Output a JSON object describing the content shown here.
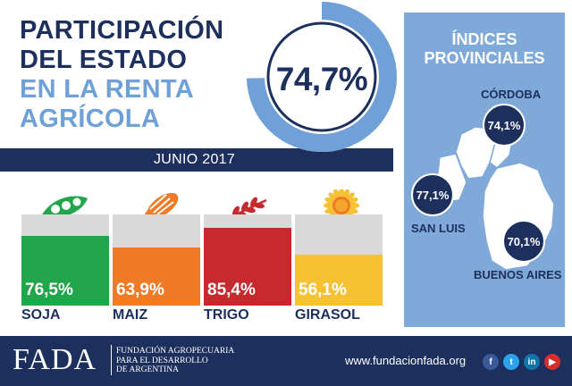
{
  "title": {
    "line1": "PARTICIPACIÓN",
    "line2": "DEL ESTADO",
    "line3": "EN LA RENTA",
    "line4": "AGRÍCOLA"
  },
  "date": "JUNIO 2017",
  "total": {
    "label": "74,7%",
    "fraction": 0.747
  },
  "provinces": {
    "title_line1": "ÍNDICES",
    "title_line2": "PROVINCIALES",
    "items": [
      {
        "name": "CÓRDOBA",
        "value": "74,1%"
      },
      {
        "name": "SAN LUIS",
        "value": "77,1%"
      },
      {
        "name": "BUENOS AIRES",
        "value": "70,1%"
      }
    ]
  },
  "crops": [
    {
      "name": "SOJA",
      "value": "76,5%",
      "fraction": 0.765,
      "color": "#22a64b",
      "icon": "soy-pod-icon"
    },
    {
      "name": "MAIZ",
      "value": "63,9%",
      "fraction": 0.639,
      "color": "#f07a26",
      "icon": "corn-icon"
    },
    {
      "name": "TRIGO",
      "value": "85,4%",
      "fraction": 0.854,
      "color": "#c62a2e",
      "icon": "wheat-icon"
    },
    {
      "name": "GIRASOL",
      "value": "56,1%",
      "fraction": 0.561,
      "color": "#f6c234",
      "icon": "sunflower-icon"
    }
  ],
  "footer": {
    "logo": "FADA",
    "sub_line1": "FUNDACIÓN AGROPECUARIA",
    "sub_line2": "PARA EL DESARROLLO",
    "sub_line3": "DE ARGENTINA",
    "website": "www.fundacionfada.org",
    "social": [
      {
        "icon": "facebook-icon",
        "glyph": "f",
        "color": "#3b5998"
      },
      {
        "icon": "twitter-icon",
        "glyph": "t",
        "color": "#2aa3ef"
      },
      {
        "icon": "linkedin-icon",
        "glyph": "in",
        "color": "#0e76a8"
      },
      {
        "icon": "youtube-icon",
        "glyph": "▶",
        "color": "#d62d2d"
      }
    ]
  },
  "colors": {
    "navy": "#1d2f5c",
    "light_blue": "#6fa0d8",
    "panel": "#7fa9d9",
    "bar_bg": "#d9d9d9"
  }
}
